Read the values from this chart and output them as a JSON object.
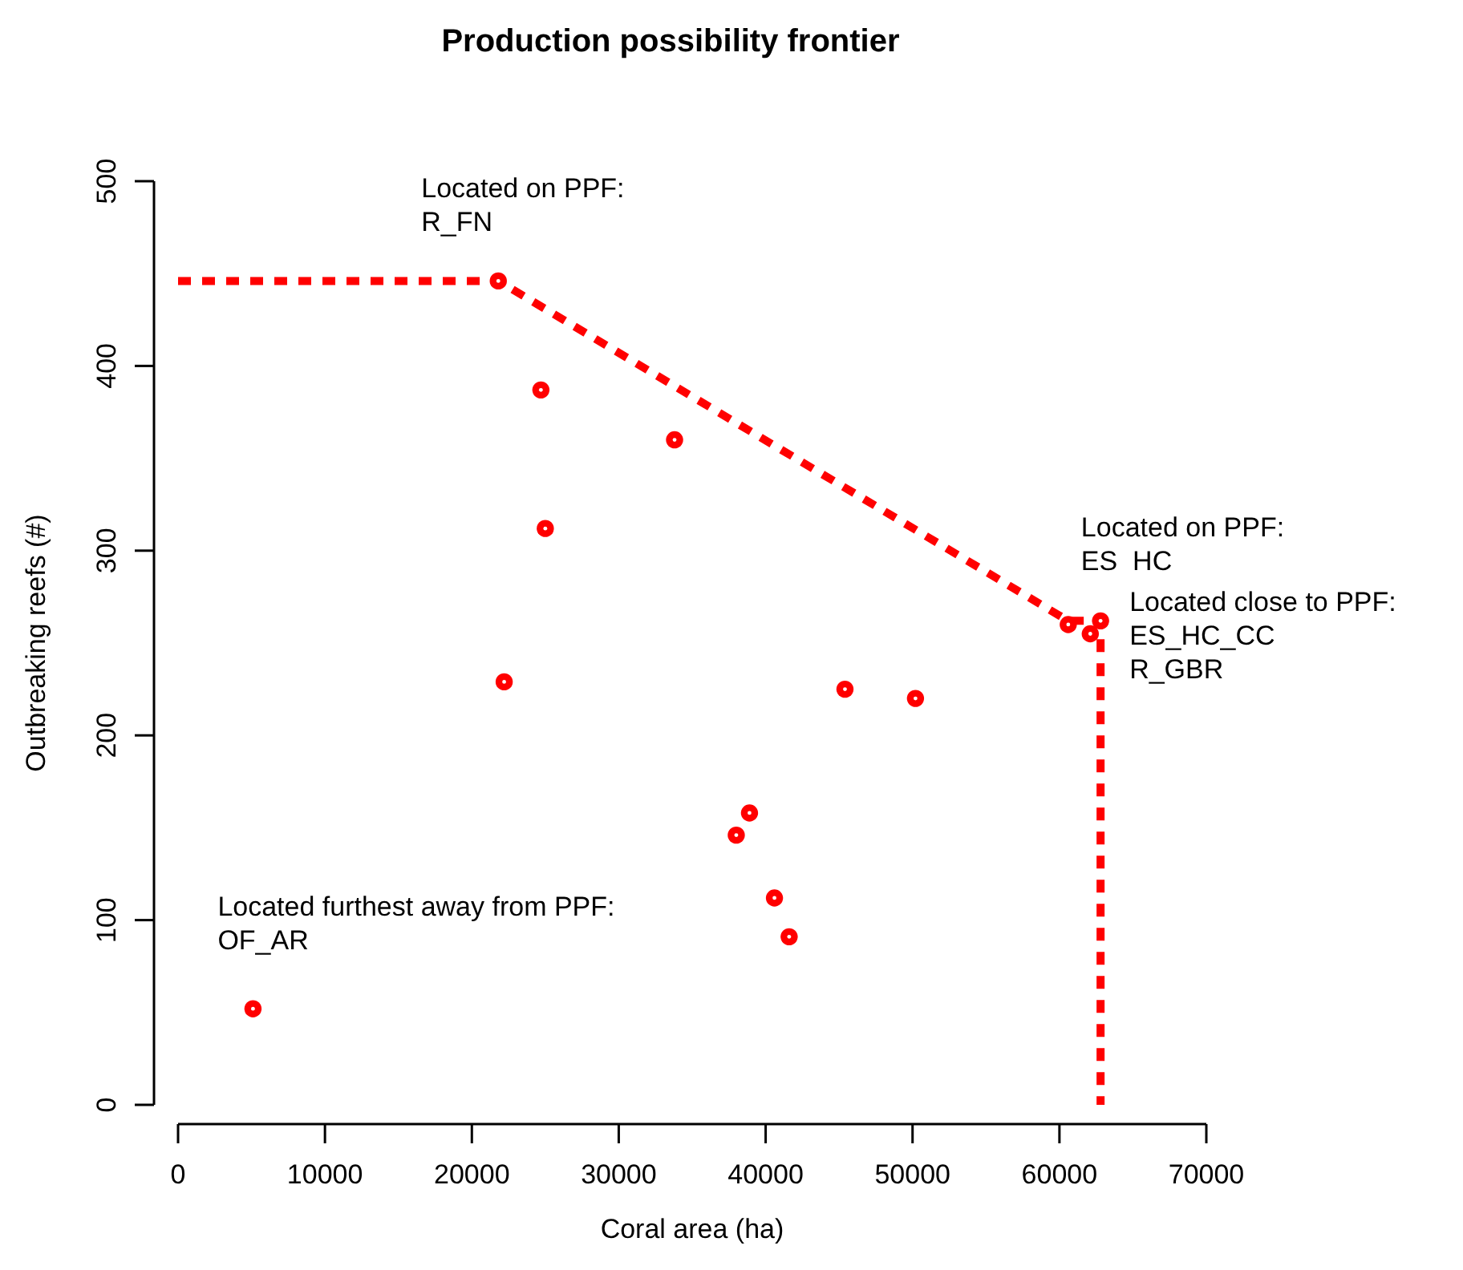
{
  "chart_data": {
    "type": "scatter",
    "title": "Production possibility frontier",
    "xlabel": "Coral area (ha)",
    "ylabel": "Outbreaking reefs (#)",
    "xlim": [
      0,
      70000
    ],
    "xticks": [
      0,
      10000,
      20000,
      30000,
      40000,
      50000,
      60000,
      70000
    ],
    "ylim": [
      0,
      500
    ],
    "yticks": [
      0,
      100,
      200,
      300,
      400,
      500
    ],
    "grid": false,
    "marker": "circle",
    "series": [
      {
        "color": "#ff0000",
        "x": [
          21800,
          24700,
          25000,
          22200,
          33800,
          45400,
          50200,
          60600,
          62100,
          62800,
          38900,
          38000,
          40600,
          41600,
          5100
        ],
        "values": [
          446,
          387,
          312,
          229,
          360,
          225,
          220,
          260,
          255,
          262,
          158,
          146,
          112,
          91,
          52
        ]
      },
      {
        "type": "line",
        "color": "#ff0000",
        "line_style": "dashed",
        "marker": "none",
        "x": [
          0,
          21800,
          60600,
          62800,
          62800
        ],
        "values": [
          446,
          446,
          262,
          262,
          0
        ]
      }
    ],
    "annotations": [
      {
        "text": "Located on PPF:\nR_FN",
        "x": 21800,
        "y": 446
      },
      {
        "text": "Located on PPF:\nES  HC",
        "x": 60600,
        "y": 260
      },
      {
        "text": "Located close to PPF:\nES_HC_CC\nR_GBR",
        "x": 62800,
        "y": 262
      },
      {
        "text": "Located furthest away from PPF:\nOF_AR",
        "x": 5100,
        "y": 52
      }
    ]
  }
}
